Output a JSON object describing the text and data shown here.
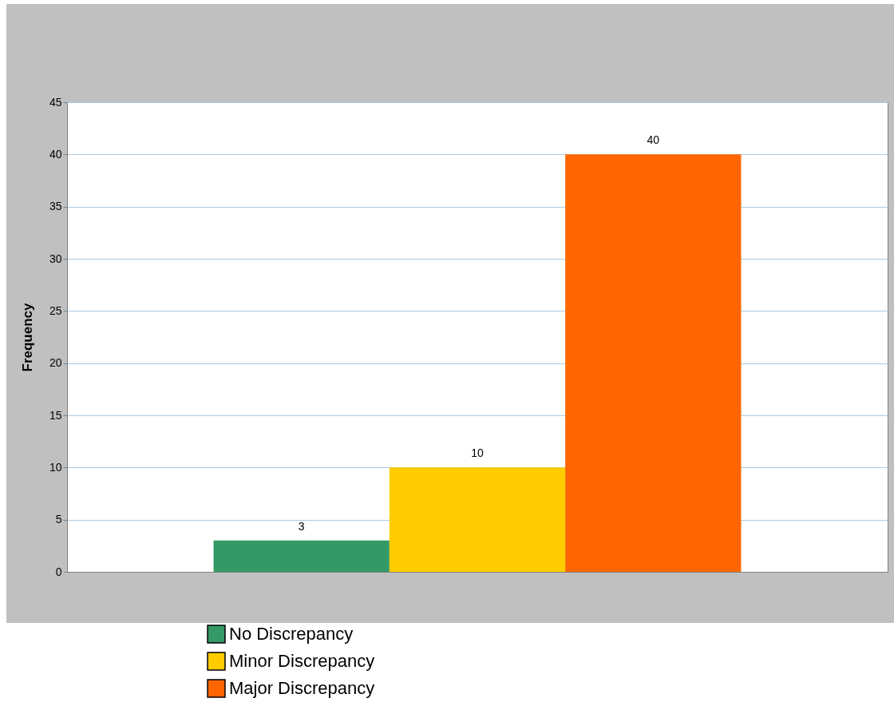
{
  "chart_data": {
    "type": "bar",
    "ylabel": "Frequency",
    "categories": [
      null
    ],
    "series": [
      {
        "name": "No Discrepancy",
        "color": "#339966",
        "values": [
          3
        ]
      },
      {
        "name": "Minor Discrepancy",
        "color": "#ffcc00",
        "values": [
          10
        ]
      },
      {
        "name": "Major Discrepancy",
        "color": "#ff6600",
        "values": [
          40
        ]
      }
    ],
    "ylim": [
      0,
      45
    ],
    "yticks": [
      0,
      5,
      10,
      15,
      20,
      25,
      30,
      35,
      40,
      45
    ],
    "grid": "y",
    "legend": "bottom",
    "data_labels": true
  }
}
